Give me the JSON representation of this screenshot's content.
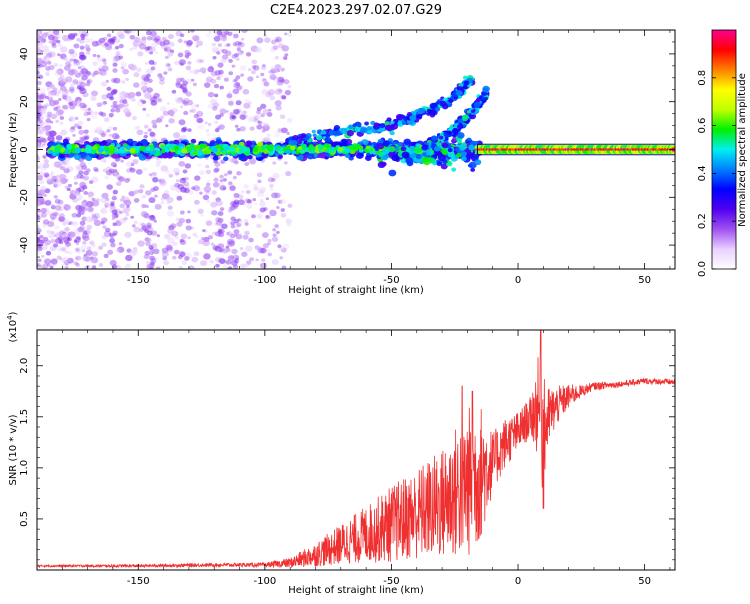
{
  "title": "C2E4.2023.297.02.07.G29",
  "colors": {
    "line": "#f03030",
    "colormap": [
      "#ffffff",
      "#e8d0ff",
      "#a050f0",
      "#5000f0",
      "#0000ff",
      "#0080ff",
      "#00f0f0",
      "#00f000",
      "#c0ff00",
      "#ffff00",
      "#ff8000",
      "#ff0000",
      "#ff0090"
    ]
  },
  "chart_data": [
    {
      "type": "heatmap",
      "xlabel": "Height of straight line (km)",
      "ylabel": "Frequency (Hz)",
      "xlim": [
        -190,
        62
      ],
      "ylim": [
        -50,
        50
      ],
      "x_ticks": [
        -150,
        -100,
        -50,
        0,
        50
      ],
      "y_ticks": [
        -40,
        -20,
        0,
        20,
        40
      ],
      "colorbar": {
        "label": "Normalized spectral amplitude",
        "range": [
          0,
          1
        ],
        "ticks": [
          "0.0",
          "0.2",
          "0.4",
          "0.6",
          "0.8"
        ]
      },
      "features": [
        {
          "name": "main-band",
          "x_range": [
            -185,
            62
          ],
          "center_freq": 0
        },
        {
          "name": "upper-branch-1",
          "points": [
            [
              -90,
              3
            ],
            [
              -70,
              8
            ],
            [
              -50,
              10
            ],
            [
              -35,
              16
            ],
            [
              -25,
              22
            ],
            [
              -18,
              30
            ]
          ]
        },
        {
          "name": "upper-branch-2",
          "points": [
            [
              -35,
              2
            ],
            [
              -25,
              8
            ],
            [
              -18,
              16
            ],
            [
              -12,
              24
            ]
          ]
        }
      ]
    },
    {
      "type": "line",
      "xlabel": "Height of straight line (km)",
      "ylabel": "SNR (10 * v/v)",
      "y_scale_label": "(x10^4)",
      "xlim": [
        -190,
        62
      ],
      "ylim": [
        0,
        2.35
      ],
      "x_ticks": [
        -150,
        -100,
        -50,
        0,
        50
      ],
      "y_ticks": [
        0.5,
        1.0,
        1.5,
        2.0
      ],
      "y_tick_labels": [
        "0.5",
        "1.0",
        "1.5",
        "2.0"
      ],
      "envelope": {
        "x": [
          -190,
          -150,
          -120,
          -100,
          -90,
          -80,
          -70,
          -60,
          -50,
          -40,
          -30,
          -25,
          -20,
          -15,
          -10,
          -5,
          0,
          5,
          8,
          10,
          12,
          15,
          20,
          25,
          30,
          40,
          50,
          62
        ],
        "y": [
          0.04,
          0.04,
          0.05,
          0.05,
          0.07,
          0.15,
          0.25,
          0.35,
          0.45,
          0.55,
          0.65,
          0.75,
          0.85,
          0.95,
          1.05,
          1.25,
          1.35,
          1.5,
          1.6,
          1.3,
          1.5,
          1.6,
          1.7,
          1.75,
          1.8,
          1.82,
          1.85,
          1.84
        ]
      },
      "noise": {
        "x": [
          -190,
          -100,
          -90,
          -80,
          -70,
          -60,
          -50,
          -40,
          -30,
          -25,
          -20,
          -15,
          -10,
          -5,
          0,
          5,
          8,
          10,
          12,
          15,
          20,
          25,
          30,
          40,
          50,
          62
        ],
        "amplitude": [
          0.01,
          0.02,
          0.05,
          0.12,
          0.2,
          0.28,
          0.38,
          0.45,
          0.55,
          0.65,
          0.75,
          0.7,
          0.3,
          0.25,
          0.2,
          0.2,
          0.5,
          0.6,
          0.3,
          0.2,
          0.12,
          0.06,
          0.04,
          0.03,
          0.03,
          0.03
        ]
      },
      "peaks": [
        {
          "x": -22,
          "y": 1.8
        },
        {
          "x": -18,
          "y": 1.75
        },
        {
          "x": 9,
          "y": 2.35
        },
        {
          "x": 10,
          "y": 0.6
        }
      ]
    }
  ]
}
